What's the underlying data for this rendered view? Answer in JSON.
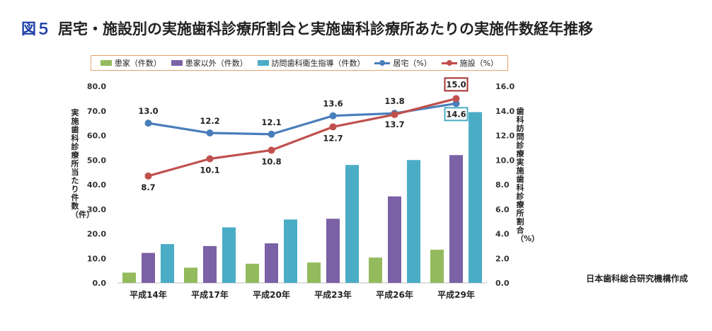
{
  "title": {
    "figure_no": "図５",
    "text": "居宅・施設別の実施歯科診療所割合と実施歯科診療所あたりの実施件数経年推移"
  },
  "source": "日本歯科総合研究機構作成",
  "chart_data": {
    "type": "bar+line",
    "categories": [
      "平成14年",
      "平成17年",
      "平成20年",
      "平成23年",
      "平成26年",
      "平成29年"
    ],
    "bar_series": [
      {
        "name": "患家（件数）",
        "color": "#93bb5d",
        "values": [
          4.2,
          6.2,
          7.8,
          8.3,
          10.3,
          13.5
        ]
      },
      {
        "name": "患家以外（件数）",
        "color": "#7b61a6",
        "values": [
          12.2,
          15.0,
          16.1,
          26.1,
          35.2,
          52.0
        ]
      },
      {
        "name": "訪問歯科衛生指導（件数）",
        "color": "#4bacc6",
        "values": [
          15.8,
          22.6,
          25.8,
          48.0,
          50.0,
          69.5
        ]
      }
    ],
    "line_series": [
      {
        "name": "居宅（%）",
        "color": "#4a7ebb",
        "values": [
          13.0,
          12.2,
          12.1,
          13.6,
          13.8,
          14.6
        ],
        "labels": [
          "13.0",
          "12.2",
          "12.1",
          "13.6",
          "13.8",
          "14.6"
        ]
      },
      {
        "name": "施設（%）",
        "color": "#c0504d",
        "values": [
          8.7,
          10.1,
          10.8,
          12.7,
          13.7,
          15.0
        ],
        "labels": [
          "8.7",
          "10.1",
          "10.8",
          "12.7",
          "13.7",
          "15.0"
        ]
      }
    ],
    "y_left": {
      "label": "実施歯科診療所当たり件数（件）",
      "ylim": [
        0,
        80
      ],
      "ticks": [
        "0.0",
        "10.0",
        "20.0",
        "30.0",
        "40.0",
        "50.0",
        "60.0",
        "70.0",
        "80.0"
      ]
    },
    "y_right": {
      "label": "歯科訪問診療実施歯科診療所割合（%）",
      "ylim": [
        0,
        16
      ],
      "ticks": [
        "0.0",
        "2.0",
        "4.0",
        "6.0",
        "8.0",
        "10.0",
        "12.0",
        "14.0",
        "16.0"
      ]
    },
    "boxed_labels": [
      {
        "series": "施設（%）",
        "index": 5,
        "border": "#a0302e"
      },
      {
        "series": "居宅（%）",
        "index": 5,
        "border": "#4bacc6"
      }
    ],
    "legend_position": "top",
    "grid": false
  }
}
